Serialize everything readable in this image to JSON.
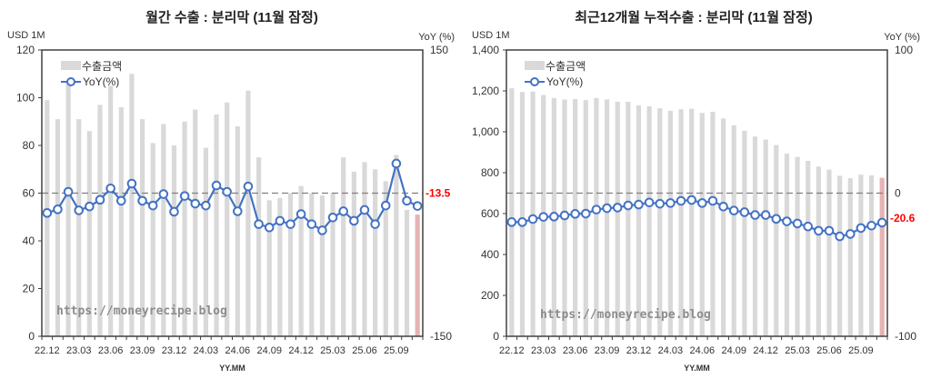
{
  "colors": {
    "bar": "#d9d9d9",
    "bar_last": "#e6b3b3",
    "line": "#4472c4",
    "last_label": "#ff0000",
    "zero_line": "#808080"
  },
  "chart_data": [
    {
      "type": "bar+line",
      "title": "월간 수출 : 분리막 (11월 잠정)",
      "ylabel": "USD 1M",
      "y2label": "YoY (%)",
      "xlabel": "YY.MM",
      "ylim": [
        0,
        120
      ],
      "yticks": [
        "0",
        "20",
        "40",
        "60",
        "80",
        "100",
        "120"
      ],
      "y2lim": [
        -150,
        150
      ],
      "y2ticks": [
        "-150",
        "150"
      ],
      "x_tick_labels": [
        "22.12",
        "23.03",
        "23.06",
        "23.09",
        "23.12",
        "24.03",
        "24.06",
        "24.09",
        "24.12",
        "25.03",
        "25.06",
        "25.09"
      ],
      "watermark": "https://moneyrecipe.blog",
      "last_label": "-13.5",
      "series": [
        {
          "name": "수출금액",
          "axis": "left",
          "type": "bar",
          "values": [
            99,
            91,
            106,
            91,
            86,
            97,
            105,
            96,
            110,
            91,
            81,
            89,
            80,
            90,
            95,
            79,
            93,
            98,
            88,
            103,
            75,
            57,
            58,
            60,
            63,
            60,
            59,
            60,
            75,
            69,
            73,
            70,
            65,
            76,
            53,
            51
          ]
        },
        {
          "name": "YoY(%)",
          "axis": "right",
          "type": "line",
          "values": [
            -20.8,
            -17,
            1.4,
            -18,
            -14,
            -7,
            5,
            -8,
            10,
            -8,
            -13,
            -1,
            -19.5,
            -3,
            -11,
            -13,
            8,
            1.4,
            -19,
            7,
            -32.5,
            -36,
            -29,
            -32.5,
            -22,
            -32.5,
            -39,
            -25.5,
            -19,
            -29,
            -17.6,
            -32.5,
            -13,
            31,
            -8,
            -13.5
          ]
        }
      ]
    },
    {
      "type": "bar+line",
      "title": "최근12개월 누적수출 : 분리막 (11월 잠정)",
      "ylabel": "USD 1M",
      "y2label": "YoY (%)",
      "xlabel": "YY.MM",
      "ylim": [
        0,
        1400
      ],
      "yticks": [
        "0",
        "200",
        "400",
        "600",
        "800",
        "1,000",
        "1,200",
        "1,400"
      ],
      "y2lim": [
        -100,
        100
      ],
      "y2ticks": [
        "-100",
        "0",
        "100"
      ],
      "x_tick_labels": [
        "22.12",
        "23.03",
        "23.06",
        "23.09",
        "23.12",
        "24.03",
        "24.06",
        "24.09",
        "24.12",
        "25.03",
        "25.06",
        "25.09"
      ],
      "watermark": "https://moneyrecipe.blog",
      "last_label": "-20.6",
      "series": [
        {
          "name": "수출금액",
          "axis": "left",
          "type": "bar",
          "values": [
            1213,
            1195,
            1197,
            1180,
            1165,
            1158,
            1160,
            1155,
            1165,
            1158,
            1147,
            1147,
            1130,
            1125,
            1115,
            1103,
            1110,
            1113,
            1092,
            1098,
            1065,
            1032,
            1005,
            977,
            962,
            935,
            893,
            877,
            858,
            830,
            815,
            785,
            773,
            790,
            787,
            775
          ]
        },
        {
          "name": "YoY(%)",
          "axis": "right",
          "type": "line",
          "values": [
            -20.2,
            -20.2,
            -18.1,
            -16.6,
            -16.4,
            -15.6,
            -14.5,
            -14.3,
            -11.5,
            -10.5,
            -10.1,
            -8.6,
            -8,
            -6.5,
            -7.4,
            -6.9,
            -5.4,
            -4.8,
            -6.9,
            -5.4,
            -9.4,
            -12.2,
            -13.3,
            -15.3,
            -15.3,
            -18,
            -19.7,
            -21.2,
            -23.3,
            -26.3,
            -26.3,
            -30.2,
            -28.5,
            -24.4,
            -22.7,
            -20.6
          ]
        }
      ]
    }
  ]
}
